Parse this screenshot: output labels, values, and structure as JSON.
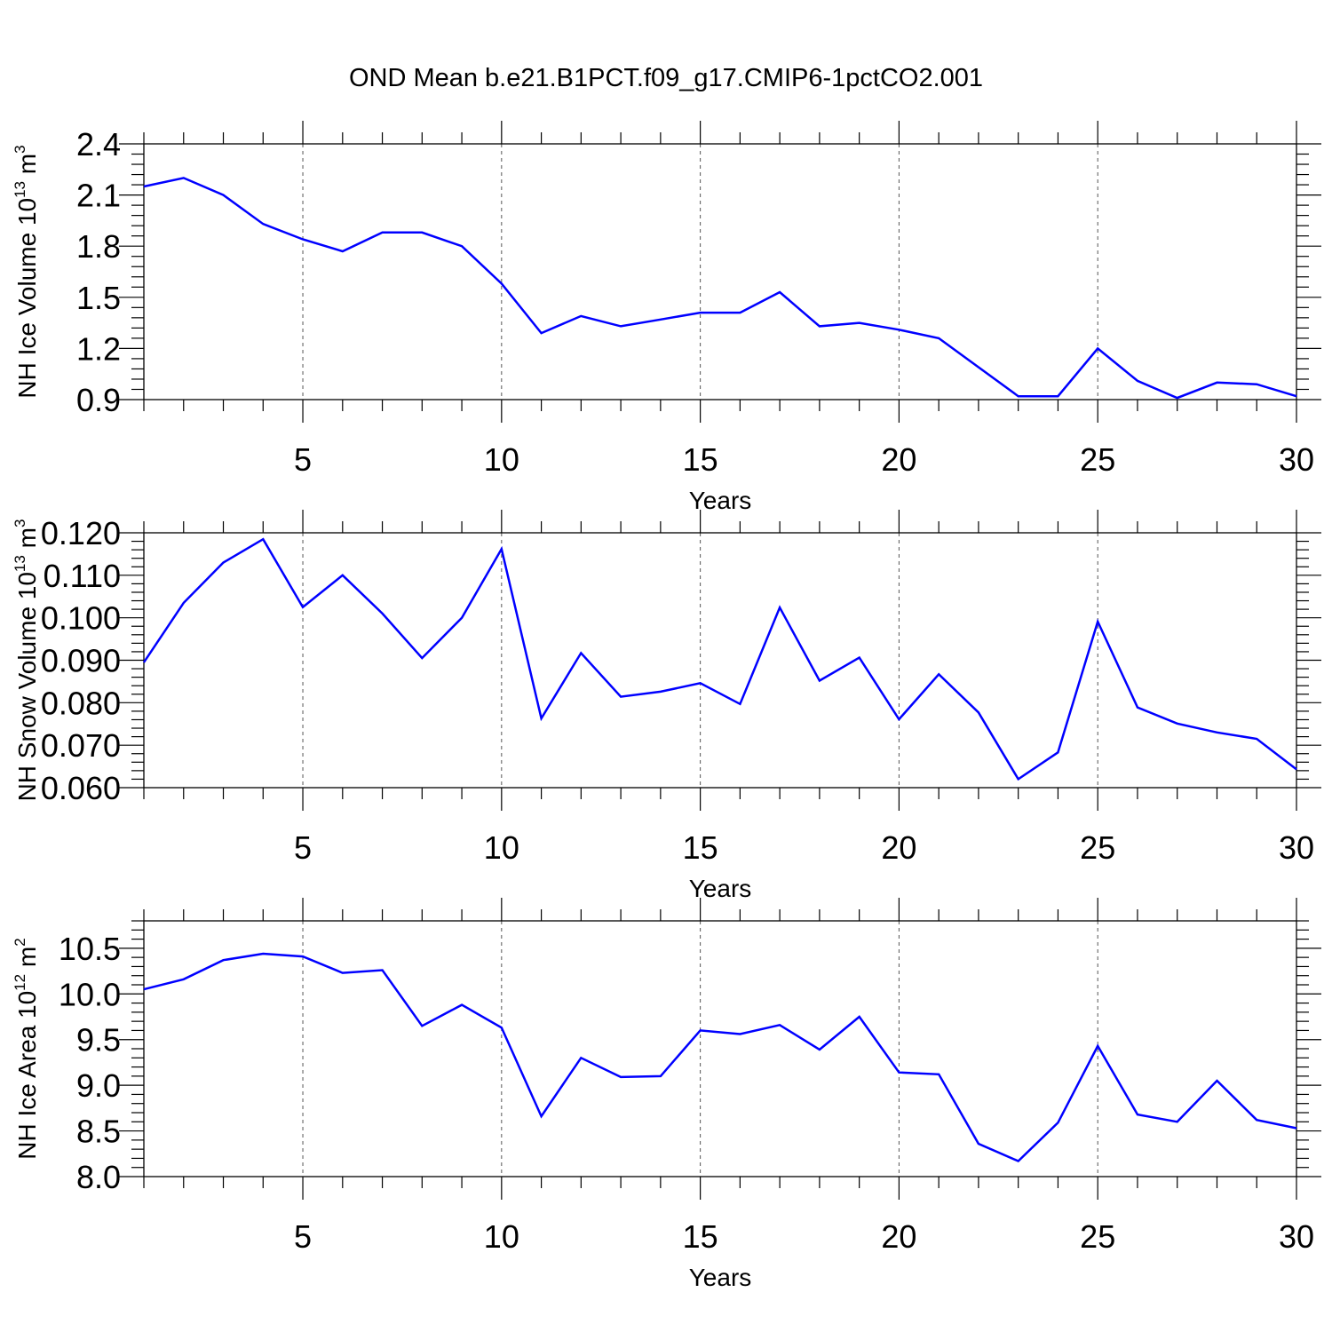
{
  "title": "OND Mean b.e21.B1PCT.f09_g17.CMIP6-1pctCO2.001",
  "series_color": "#0000ff",
  "chart_data": [
    {
      "type": "line",
      "title": "OND Mean b.e21.B1PCT.f09_g17.CMIP6-1pctCO2.001",
      "xlabel": "Years",
      "ylabel": {
        "base": "NH Ice Volume 10",
        "exp": "13",
        "unit": " m",
        "unit_exp": "3"
      },
      "xlim": [
        1,
        30
      ],
      "ylim": [
        0.9,
        2.4
      ],
      "xticks": [
        5,
        10,
        15,
        20,
        25,
        30
      ],
      "xtick_labels": [
        "5",
        "10",
        "15",
        "20",
        "25",
        "30"
      ],
      "yticks": [
        0.9,
        1.2,
        1.5,
        1.8,
        2.1,
        2.4
      ],
      "ytick_labels": [
        "0.9",
        "1.2",
        "1.5",
        "1.8",
        "2.1",
        "2.4"
      ],
      "minor_step": 0.06,
      "grid": "vertical dashed at major x ticks",
      "x": [
        1,
        2,
        3,
        4,
        5,
        6,
        7,
        8,
        9,
        10,
        11,
        12,
        13,
        14,
        15,
        16,
        17,
        18,
        19,
        20,
        21,
        22,
        23,
        24,
        25,
        26,
        27,
        28,
        29,
        30
      ],
      "values": [
        2.15,
        2.2,
        2.1,
        1.93,
        1.84,
        1.77,
        1.88,
        1.88,
        1.8,
        1.58,
        1.29,
        1.39,
        1.33,
        1.37,
        1.41,
        1.41,
        1.53,
        1.33,
        1.35,
        1.31,
        1.26,
        1.09,
        0.92,
        0.92,
        1.2,
        1.01,
        0.91,
        1.0,
        0.99,
        0.92
      ]
    },
    {
      "type": "line",
      "xlabel": "Years",
      "ylabel": {
        "base": "NH Snow Volume 10",
        "exp": "13",
        "unit": " m",
        "unit_exp": "3"
      },
      "xlim": [
        1,
        30
      ],
      "ylim": [
        0.06,
        0.12
      ],
      "xticks": [
        5,
        10,
        15,
        20,
        25,
        30
      ],
      "xtick_labels": [
        "5",
        "10",
        "15",
        "20",
        "25",
        "30"
      ],
      "yticks": [
        0.06,
        0.07,
        0.08,
        0.09,
        0.1,
        0.11,
        0.12
      ],
      "ytick_labels": [
        "0.060",
        "0.070",
        "0.080",
        "0.090",
        "0.100",
        "0.110",
        "0.120"
      ],
      "minor_step": 0.002,
      "grid": "vertical dashed at major x ticks",
      "x": [
        1,
        2,
        3,
        4,
        5,
        6,
        7,
        8,
        9,
        10,
        11,
        12,
        13,
        14,
        15,
        16,
        17,
        18,
        19,
        20,
        21,
        22,
        23,
        24,
        25,
        26,
        27,
        28,
        29,
        30
      ],
      "values": [
        0.0895,
        0.1035,
        0.113,
        0.1185,
        0.1025,
        0.11,
        0.101,
        0.0905,
        0.1,
        0.1162,
        0.0763,
        0.0917,
        0.0814,
        0.0826,
        0.0846,
        0.0797,
        0.1024,
        0.0852,
        0.0906,
        0.0761,
        0.0867,
        0.0777,
        0.062,
        0.0683,
        0.0991,
        0.0789,
        0.0751,
        0.073,
        0.0715,
        0.0643
      ]
    },
    {
      "type": "line",
      "xlabel": "Years",
      "ylabel": {
        "base": "NH Ice Area 10",
        "exp": "12",
        "unit": " m",
        "unit_exp": "2"
      },
      "xlim": [
        1,
        30
      ],
      "ylim": [
        8.0,
        10.8
      ],
      "xticks": [
        5,
        10,
        15,
        20,
        25,
        30
      ],
      "xtick_labels": [
        "5",
        "10",
        "15",
        "20",
        "25",
        "30"
      ],
      "yticks": [
        8.0,
        8.5,
        9.0,
        9.5,
        10.0,
        10.5
      ],
      "ytick_labels": [
        "8.0",
        "8.5",
        "9.0",
        "9.5",
        "10.0",
        "10.5"
      ],
      "minor_step": 0.1,
      "grid": "vertical dashed at major x ticks",
      "x": [
        1,
        2,
        3,
        4,
        5,
        6,
        7,
        8,
        9,
        10,
        11,
        12,
        13,
        14,
        15,
        16,
        17,
        18,
        19,
        20,
        21,
        22,
        23,
        24,
        25,
        26,
        27,
        28,
        29,
        30
      ],
      "values": [
        10.05,
        10.16,
        10.37,
        10.44,
        10.41,
        10.23,
        10.26,
        9.65,
        9.88,
        9.63,
        8.66,
        9.3,
        9.09,
        9.1,
        9.6,
        9.56,
        9.66,
        9.39,
        9.75,
        9.14,
        9.12,
        8.36,
        8.17,
        8.59,
        9.43,
        8.68,
        8.6,
        9.05,
        8.62,
        8.53
      ]
    }
  ]
}
